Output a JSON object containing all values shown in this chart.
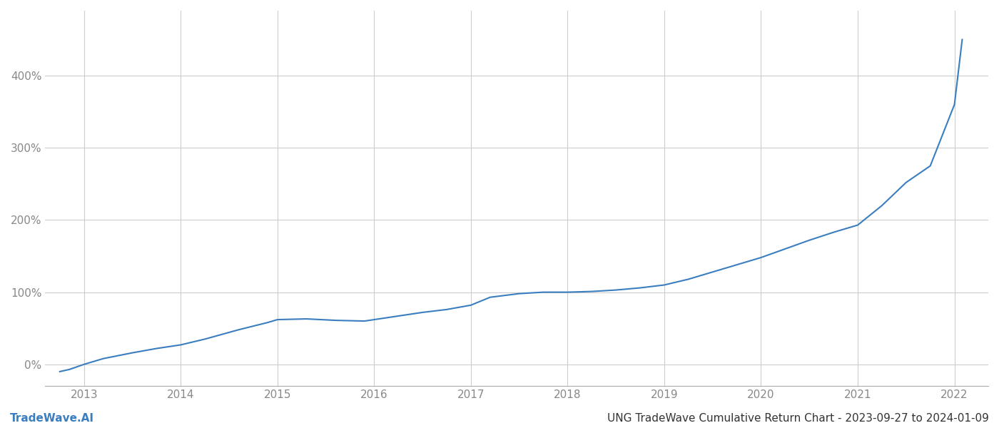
{
  "title": "UNG TradeWave Cumulative Return Chart - 2023-09-27 to 2024-01-09",
  "watermark": "TradeWave.AI",
  "x_years": [
    2013,
    2014,
    2015,
    2016,
    2017,
    2018,
    2019,
    2020,
    2021,
    2022
  ],
  "x_values": [
    2012.75,
    2012.85,
    2013.0,
    2013.2,
    2013.5,
    2013.75,
    2014.0,
    2014.25,
    2014.6,
    2014.9,
    2015.0,
    2015.3,
    2015.6,
    2015.9,
    2016.0,
    2016.25,
    2016.5,
    2016.75,
    2017.0,
    2017.2,
    2017.5,
    2017.75,
    2018.0,
    2018.25,
    2018.5,
    2018.75,
    2019.0,
    2019.25,
    2019.5,
    2019.75,
    2020.0,
    2020.25,
    2020.5,
    2020.75,
    2021.0,
    2021.25,
    2021.5,
    2021.75,
    2022.0,
    2022.08
  ],
  "y_values": [
    -10,
    -7,
    0,
    8,
    16,
    22,
    27,
    35,
    48,
    58,
    62,
    63,
    61,
    60,
    62,
    67,
    72,
    76,
    82,
    93,
    98,
    100,
    100,
    101,
    103,
    106,
    110,
    118,
    128,
    138,
    148,
    160,
    172,
    183,
    193,
    220,
    252,
    275,
    360,
    450
  ],
  "line_color": "#3a7ebf",
  "line_width": 1.5,
  "ylim": [
    -30,
    490
  ],
  "yticks": [
    0,
    100,
    200,
    300,
    400
  ],
  "xlim": [
    2012.6,
    2022.35
  ],
  "background_color": "#ffffff",
  "grid_color": "#cccccc",
  "axis_label_color": "#888888",
  "footer_left_color": "#3a7ebf",
  "footer_right_color": "#333333",
  "tick_fontsize": 11,
  "footer_fontsize": 11
}
